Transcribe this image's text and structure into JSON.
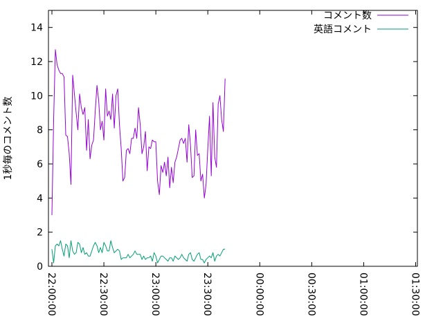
{
  "chart_data": {
    "type": "line",
    "title": "",
    "xlabel": "",
    "ylabel": "1秒毎のコメント数",
    "x_start": "22:00:00",
    "x_interval_seconds": 60,
    "xlim": [
      "21:58:00",
      "01:31:00"
    ],
    "ylim": [
      0,
      15
    ],
    "xticks": [
      "22:00:00",
      "22:30:00",
      "23:00:00",
      "23:30:00",
      "00:00:00",
      "00:30:00",
      "01:00:00",
      "01:30:00"
    ],
    "yticks": [
      "0",
      "2",
      "4",
      "6",
      "8",
      "10",
      "12",
      "14"
    ],
    "grid": false,
    "legend_position": "top-right",
    "series": [
      {
        "name": "コメント数",
        "color": "#9400d3",
        "values": [
          3.0,
          8.6,
          12.7,
          11.8,
          11.5,
          11.3,
          11.3,
          11.1,
          7.7,
          7.6,
          6.6,
          4.8,
          11.2,
          10.1,
          9.0,
          8.0,
          10.1,
          9.3,
          8.9,
          9.3,
          6.8,
          8.6,
          6.3,
          7.1,
          7.4,
          9.1,
          10.6,
          9.7,
          8.0,
          8.5,
          7.4,
          10.4,
          8.8,
          9.1,
          8.6,
          10.1,
          8.1,
          10.0,
          10.4,
          8.3,
          6.9,
          5.0,
          5.2,
          6.8,
          6.9,
          6.6,
          7.5,
          7.5,
          8.1,
          7.5,
          9.3,
          8.3,
          6.6,
          7.0,
          7.9,
          5.6,
          7.0,
          6.9,
          7.4,
          7.3,
          7.3,
          5.0,
          4.2,
          5.9,
          5.5,
          6.1,
          5.3,
          6.4,
          4.6,
          5.8,
          4.9,
          6.1,
          6.4,
          6.9,
          7.4,
          7.5,
          7.2,
          7.5,
          6.1,
          8.3,
          7.1,
          5.2,
          5.3,
          8.0,
          6.5,
          6.6,
          5.0,
          5.4,
          4.0,
          4.8,
          6.9,
          8.8,
          5.3,
          9.6,
          6.4,
          5.8,
          9.5,
          10.0,
          8.6,
          7.9,
          11.0
        ]
      },
      {
        "name": "英語コメント",
        "color": "#009e73",
        "values": [
          1.0,
          0.2,
          1.2,
          1.3,
          1.2,
          1.5,
          1.0,
          0.6,
          1.3,
          1.2,
          0.5,
          1.5,
          0.9,
          0.7,
          0.8,
          1.4,
          1.3,
          0.8,
          1.1,
          0.7,
          0.8,
          0.6,
          0.6,
          0.9,
          1.2,
          1.4,
          1.2,
          0.8,
          1.1,
          0.8,
          1.4,
          1.2,
          0.9,
          0.9,
          1.5,
          1.1,
          0.8,
          0.9,
          1.0,
          0.9,
          0.4,
          0.5,
          0.5,
          0.5,
          0.7,
          0.5,
          0.6,
          0.7,
          0.9,
          0.7,
          0.7,
          0.7,
          0.4,
          0.6,
          0.4,
          0.5,
          0.5,
          0.6,
          0.3,
          0.8,
          0.6,
          0.2,
          0.4,
          0.6,
          0.6,
          0.5,
          0.4,
          0.3,
          0.5,
          0.5,
          0.3,
          0.6,
          0.5,
          0.4,
          0.5,
          0.7,
          0.5,
          0.4,
          0.3,
          0.7,
          0.8,
          0.4,
          0.3,
          0.5,
          0.7,
          0.8,
          0.4,
          0.4,
          0.2,
          0.4,
          0.5,
          0.6,
          0.5,
          0.8,
          0.3,
          0.6,
          0.7,
          0.6,
          0.8,
          1.0,
          1.0
        ]
      }
    ]
  }
}
